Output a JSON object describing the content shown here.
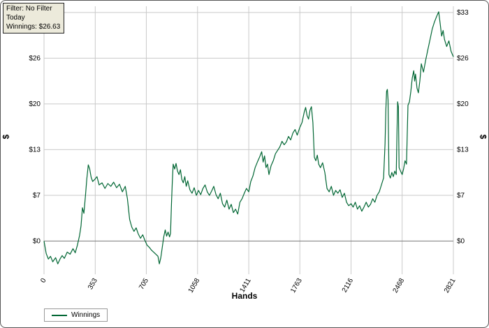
{
  "tooltip": {
    "line1": "Filter: No Filter",
    "line2": "Today",
    "line3": "Winnings: $26.63"
  },
  "axes": {
    "x_title": "Hands",
    "y_title_left": "$",
    "y_title_right": "$",
    "x_ticks": [
      0,
      353,
      705,
      1058,
      1411,
      1763,
      2116,
      2468,
      2821
    ],
    "y_ticks": [
      0,
      6.6,
      13.2,
      19.8,
      26.4,
      33
    ],
    "y_tick_labels": [
      "$0",
      "$7",
      "$13",
      "$20",
      "$26",
      "$33"
    ]
  },
  "legend": {
    "label": "Winnings"
  },
  "colors": {
    "line": "#006633",
    "grid": "#c9c9c9",
    "zero_line": "#7a7a7a",
    "tick_text": "#000000",
    "tooltip_bg": "#eceadb"
  },
  "chart_data": {
    "type": "line",
    "title": "",
    "xlabel": "Hands",
    "ylabel": "$",
    "xlim": [
      0,
      2821
    ],
    "ylim": [
      -4.8,
      33.9
    ],
    "grid": true,
    "legend_position": "bottom-left",
    "series": [
      {
        "name": "Winnings",
        "points": [
          [
            0,
            0
          ],
          [
            15,
            -1.8
          ],
          [
            30,
            -2.6
          ],
          [
            45,
            -2.2
          ],
          [
            60,
            -3.0
          ],
          [
            80,
            -2.4
          ],
          [
            95,
            -3.3
          ],
          [
            110,
            -2.6
          ],
          [
            125,
            -2.1
          ],
          [
            140,
            -2.5
          ],
          [
            160,
            -1.6
          ],
          [
            180,
            -1.9
          ],
          [
            200,
            -1.1
          ],
          [
            215,
            -1.7
          ],
          [
            230,
            -0.6
          ],
          [
            245,
            0.8
          ],
          [
            255,
            2.2
          ],
          [
            265,
            4.8
          ],
          [
            275,
            4.0
          ],
          [
            285,
            6.4
          ],
          [
            295,
            9.0
          ],
          [
            305,
            11.0
          ],
          [
            315,
            10.4
          ],
          [
            325,
            9.2
          ],
          [
            335,
            8.6
          ],
          [
            350,
            8.9
          ],
          [
            365,
            9.3
          ],
          [
            380,
            8.1
          ],
          [
            400,
            8.4
          ],
          [
            420,
            7.6
          ],
          [
            440,
            8.3
          ],
          [
            460,
            7.9
          ],
          [
            480,
            8.5
          ],
          [
            500,
            7.7
          ],
          [
            520,
            8.2
          ],
          [
            540,
            7.1
          ],
          [
            560,
            7.9
          ],
          [
            575,
            6.1
          ],
          [
            590,
            3.1
          ],
          [
            605,
            2.0
          ],
          [
            620,
            1.4
          ],
          [
            635,
            1.9
          ],
          [
            650,
            1.0
          ],
          [
            665,
            0.4
          ],
          [
            680,
            0.9
          ],
          [
            695,
            0.1
          ],
          [
            710,
            -0.6
          ],
          [
            725,
            -0.9
          ],
          [
            740,
            -1.3
          ],
          [
            755,
            -1.6
          ],
          [
            770,
            -1.9
          ],
          [
            785,
            -2.2
          ],
          [
            795,
            -3.3
          ],
          [
            805,
            -2.4
          ],
          [
            815,
            -0.9
          ],
          [
            825,
            0.6
          ],
          [
            835,
            1.6
          ],
          [
            845,
            0.7
          ],
          [
            855,
            1.3
          ],
          [
            865,
            0.6
          ],
          [
            872,
            1.1
          ],
          [
            878,
            5.2
          ],
          [
            884,
            8.4
          ],
          [
            890,
            11.1
          ],
          [
            900,
            10.4
          ],
          [
            910,
            11.2
          ],
          [
            920,
            10.1
          ],
          [
            930,
            9.6
          ],
          [
            940,
            10.3
          ],
          [
            950,
            8.9
          ],
          [
            960,
            8.4
          ],
          [
            970,
            9.3
          ],
          [
            980,
            7.9
          ],
          [
            990,
            8.7
          ],
          [
            1005,
            7.4
          ],
          [
            1020,
            6.9
          ],
          [
            1035,
            7.7
          ],
          [
            1050,
            6.6
          ],
          [
            1065,
            7.3
          ],
          [
            1080,
            6.7
          ],
          [
            1095,
            7.6
          ],
          [
            1110,
            8.1
          ],
          [
            1125,
            7.1
          ],
          [
            1140,
            6.6
          ],
          [
            1155,
            7.2
          ],
          [
            1170,
            7.9
          ],
          [
            1185,
            6.7
          ],
          [
            1200,
            6.1
          ],
          [
            1215,
            6.9
          ],
          [
            1230,
            5.4
          ],
          [
            1245,
            4.9
          ],
          [
            1260,
            5.9
          ],
          [
            1275,
            4.6
          ],
          [
            1290,
            5.3
          ],
          [
            1305,
            4.1
          ],
          [
            1320,
            4.6
          ],
          [
            1335,
            3.9
          ],
          [
            1350,
            5.6
          ],
          [
            1365,
            6.1
          ],
          [
            1380,
            6.9
          ],
          [
            1395,
            7.6
          ],
          [
            1411,
            7.1
          ],
          [
            1425,
            8.6
          ],
          [
            1440,
            9.4
          ],
          [
            1455,
            10.6
          ],
          [
            1470,
            11.4
          ],
          [
            1485,
            12.1
          ],
          [
            1500,
            12.9
          ],
          [
            1510,
            11.4
          ],
          [
            1520,
            12.3
          ],
          [
            1530,
            10.6
          ],
          [
            1540,
            11.1
          ],
          [
            1550,
            9.6
          ],
          [
            1565,
            10.9
          ],
          [
            1580,
            11.6
          ],
          [
            1595,
            12.6
          ],
          [
            1610,
            13.1
          ],
          [
            1625,
            13.6
          ],
          [
            1640,
            14.4
          ],
          [
            1655,
            13.9
          ],
          [
            1670,
            14.3
          ],
          [
            1685,
            15.1
          ],
          [
            1700,
            14.6
          ],
          [
            1715,
            15.6
          ],
          [
            1730,
            16.1
          ],
          [
            1745,
            15.3
          ],
          [
            1763,
            16.4
          ],
          [
            1778,
            17.1
          ],
          [
            1793,
            18.6
          ],
          [
            1803,
            19.3
          ],
          [
            1813,
            18.1
          ],
          [
            1823,
            17.6
          ],
          [
            1833,
            18.9
          ],
          [
            1843,
            19.4
          ],
          [
            1853,
            17.1
          ],
          [
            1863,
            12.1
          ],
          [
            1873,
            11.6
          ],
          [
            1883,
            12.4
          ],
          [
            1893,
            11.1
          ],
          [
            1905,
            10.6
          ],
          [
            1920,
            11.3
          ],
          [
            1935,
            9.9
          ],
          [
            1950,
            7.6
          ],
          [
            1965,
            7.1
          ],
          [
            1980,
            7.9
          ],
          [
            1995,
            6.6
          ],
          [
            2010,
            7.3
          ],
          [
            2025,
            6.9
          ],
          [
            2040,
            7.4
          ],
          [
            2055,
            6.3
          ],
          [
            2070,
            6.9
          ],
          [
            2085,
            5.6
          ],
          [
            2100,
            5.1
          ],
          [
            2116,
            5.4
          ],
          [
            2130,
            4.9
          ],
          [
            2145,
            5.6
          ],
          [
            2160,
            4.6
          ],
          [
            2175,
            5.1
          ],
          [
            2190,
            4.3
          ],
          [
            2205,
            4.9
          ],
          [
            2220,
            5.6
          ],
          [
            2235,
            4.9
          ],
          [
            2250,
            5.3
          ],
          [
            2265,
            6.1
          ],
          [
            2280,
            5.6
          ],
          [
            2295,
            6.6
          ],
          [
            2310,
            7.1
          ],
          [
            2325,
            8.1
          ],
          [
            2340,
            9.1
          ],
          [
            2350,
            14.1
          ],
          [
            2356,
            19.1
          ],
          [
            2361,
            21.6
          ],
          [
            2366,
            21.9
          ],
          [
            2371,
            20.4
          ],
          [
            2377,
            9.6
          ],
          [
            2387,
            9.1
          ],
          [
            2397,
            9.9
          ],
          [
            2407,
            9.3
          ],
          [
            2417,
            10.1
          ],
          [
            2427,
            9.6
          ],
          [
            2432,
            15.1
          ],
          [
            2437,
            20.1
          ],
          [
            2442,
            19.4
          ],
          [
            2447,
            10.6
          ],
          [
            2457,
            10.1
          ],
          [
            2468,
            9.6
          ],
          [
            2478,
            10.4
          ],
          [
            2488,
            11.6
          ],
          [
            2498,
            11.1
          ],
          [
            2508,
            19.6
          ],
          [
            2518,
            20.1
          ],
          [
            2528,
            21.6
          ],
          [
            2538,
            23.6
          ],
          [
            2548,
            24.6
          ],
          [
            2554,
            23.1
          ],
          [
            2560,
            24.1
          ],
          [
            2570,
            22.1
          ],
          [
            2580,
            21.4
          ],
          [
            2590,
            23.1
          ],
          [
            2600,
            25.6
          ],
          [
            2615,
            24.4
          ],
          [
            2630,
            26.1
          ],
          [
            2645,
            27.6
          ],
          [
            2660,
            29.1
          ],
          [
            2675,
            30.6
          ],
          [
            2690,
            31.6
          ],
          [
            2705,
            32.4
          ],
          [
            2720,
            33.1
          ],
          [
            2730,
            31.4
          ],
          [
            2740,
            29.6
          ],
          [
            2750,
            30.4
          ],
          [
            2760,
            29.1
          ],
          [
            2775,
            28.1
          ],
          [
            2790,
            28.9
          ],
          [
            2805,
            27.4
          ],
          [
            2821,
            26.6
          ]
        ]
      }
    ]
  }
}
